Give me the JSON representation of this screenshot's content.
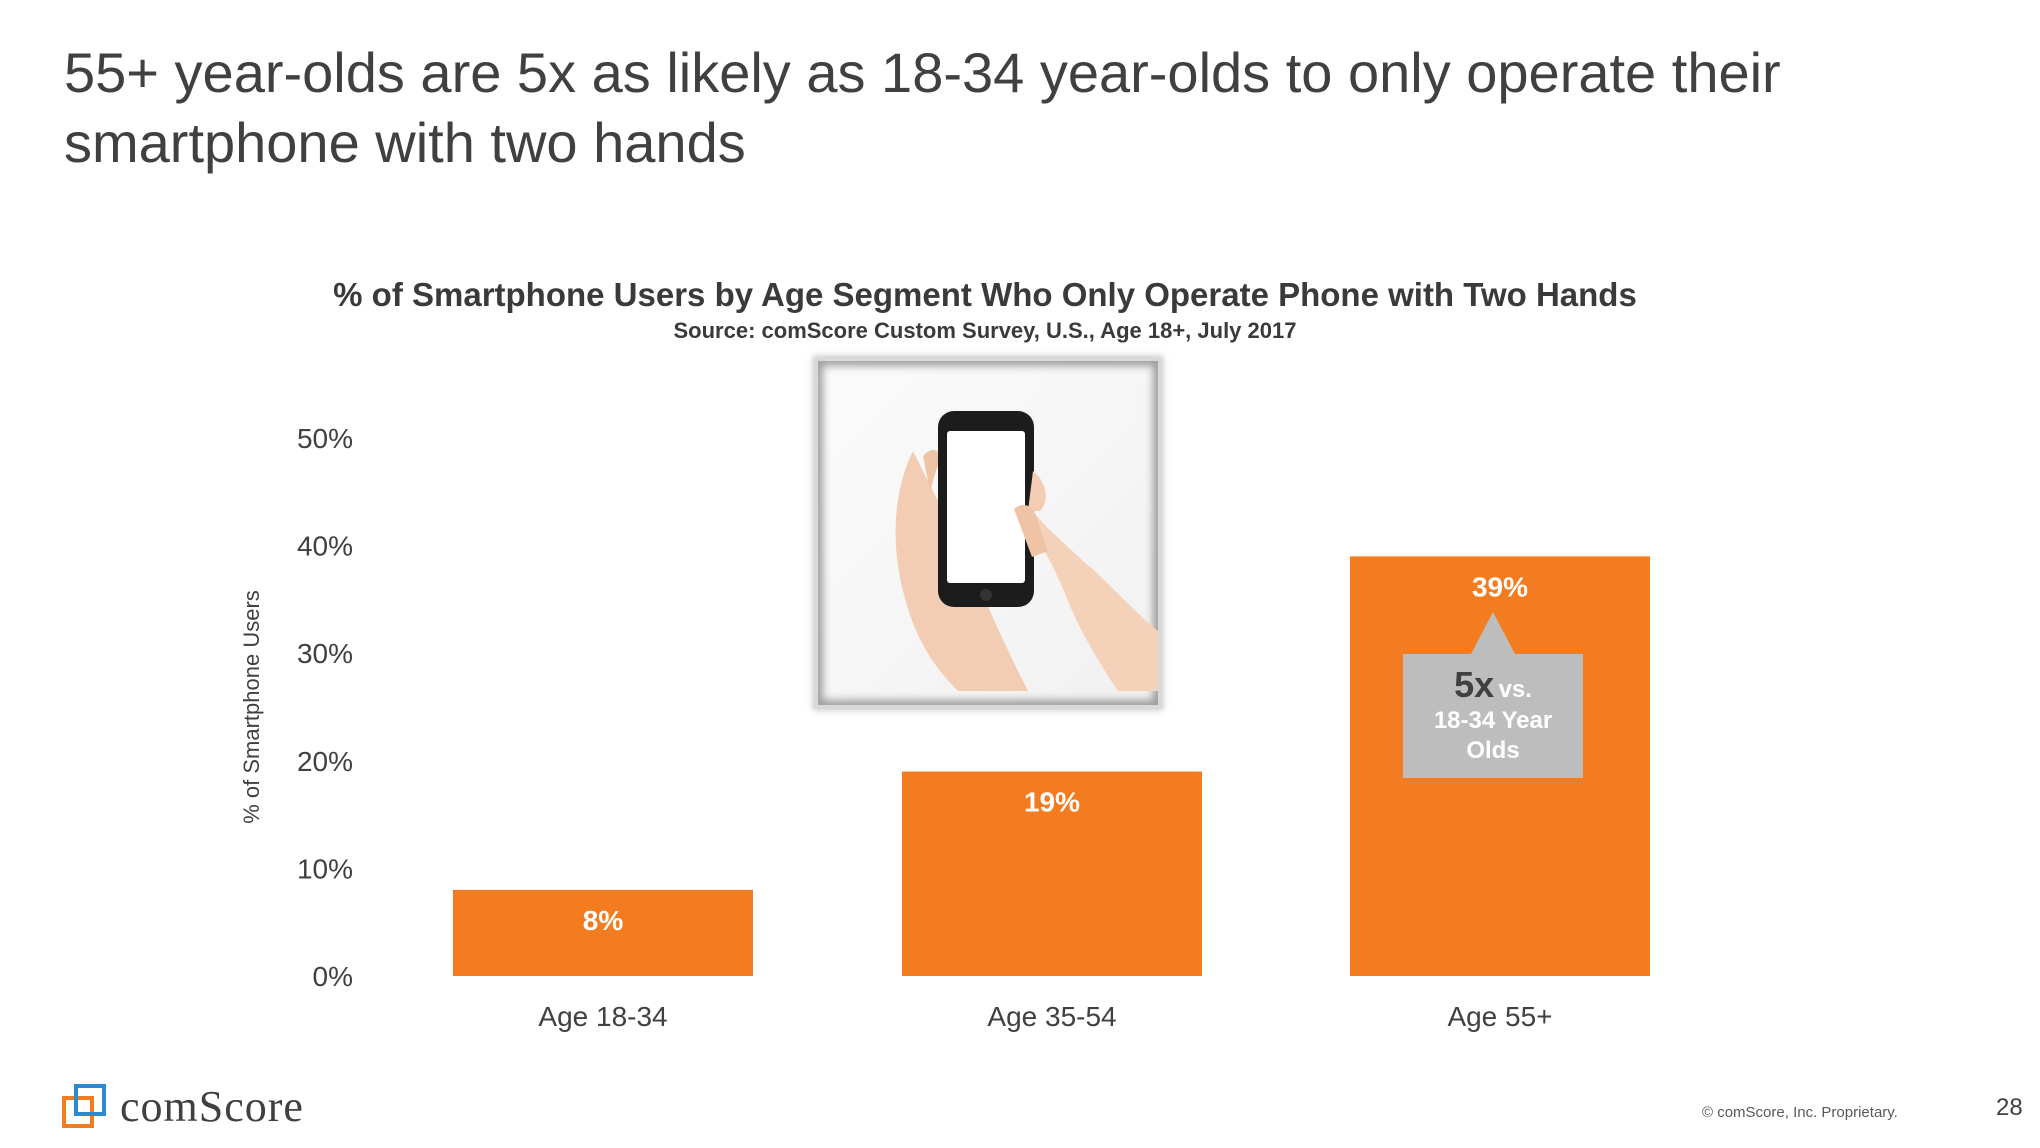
{
  "slide": {
    "title": "55+ year-olds are 5x as likely as 18-34 year-olds to only operate their smartphone with two hands",
    "page_number": "28",
    "copyright": "© comScore, Inc. Proprietary.",
    "logo_text": "comScore"
  },
  "callout": {
    "big": "5x",
    "vs": "vs.",
    "line2": "18-34 Year",
    "line3": "Olds"
  },
  "photo": {
    "description_icon": "hands-holding-smartphone-icon"
  },
  "colors": {
    "bar": "#f47c20",
    "callout": "#bdbdbd",
    "text": "#404040"
  },
  "chart_data": {
    "type": "bar",
    "title": "% of Smartphone Users by Age Segment Who Only Operate Phone with Two Hands",
    "subtitle": "Source: comScore Custom Survey, U.S., Age 18+, July 2017",
    "categories": [
      "Age 18-34",
      "Age 35-54",
      "Age 55+"
    ],
    "values": [
      8,
      19,
      39
    ],
    "data_labels": [
      "8%",
      "19%",
      "39%"
    ],
    "xlabel": "",
    "ylabel": "% of Smartphone Users",
    "ylim": [
      0,
      50
    ],
    "yticks": [
      0,
      10,
      20,
      30,
      40,
      50
    ],
    "ytick_labels": [
      "0%",
      "10%",
      "20%",
      "30%",
      "40%",
      "50%"
    ],
    "grid": false
  }
}
